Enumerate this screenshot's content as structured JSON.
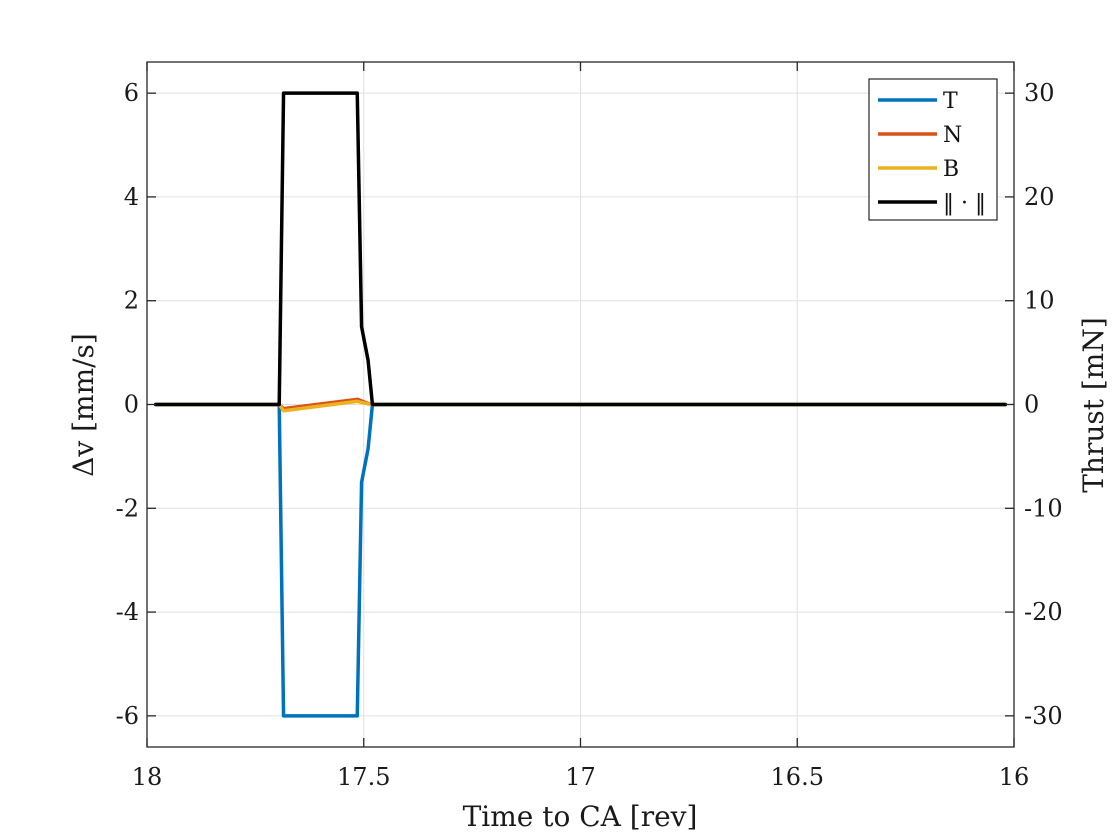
{
  "chart_data": {
    "type": "line",
    "xlabel": "Time to CA [rev]",
    "ylabel_left": "Δv [mm/s]",
    "ylabel_right": "Thrust [mN]",
    "x_reversed": true,
    "xlim": [
      16,
      18
    ],
    "ylim_left": [
      -6.6,
      6.6
    ],
    "ylim_right": [
      -33,
      33
    ],
    "x_ticks": [
      18,
      17.5,
      17,
      16.5,
      16
    ],
    "x_tick_labels": [
      "18",
      "17.5",
      "17",
      "16.5",
      "16"
    ],
    "y_ticks_left": [
      6,
      4,
      2,
      0,
      -2,
      -4,
      -6
    ],
    "y_tick_labels_left": [
      "6",
      "4",
      "2",
      "0",
      "-2",
      "-4",
      "-6"
    ],
    "y_ticks_right": [
      30,
      20,
      10,
      0,
      -10,
      -20,
      -30
    ],
    "y_tick_labels_right": [
      "30",
      "20",
      "10",
      "0",
      "-10",
      "-20",
      "-30"
    ],
    "grid": true,
    "legend_position": "top-right",
    "series": [
      {
        "name": "T",
        "color": "#0072BD",
        "x": [
          17.98,
          17.695,
          17.685,
          17.515,
          17.505,
          17.49,
          17.48,
          16.02
        ],
        "y": [
          0,
          0,
          -6,
          -6,
          -1.5,
          -0.85,
          0,
          0
        ]
      },
      {
        "name": "N",
        "color": "#D95319",
        "x": [
          17.98,
          17.695,
          17.685,
          17.515,
          17.505,
          17.49,
          17.48,
          16.02
        ],
        "y": [
          0,
          0,
          -0.08,
          0.1,
          0.07,
          0.02,
          0,
          0
        ]
      },
      {
        "name": "B",
        "color": "#EDB120",
        "x": [
          17.98,
          17.695,
          17.685,
          17.515,
          17.505,
          17.49,
          17.48,
          16.02
        ],
        "y": [
          0,
          0,
          -0.12,
          0.06,
          0.04,
          0.01,
          0,
          0
        ]
      },
      {
        "name": "‖ · ‖",
        "color": "#000000",
        "x": [
          17.98,
          17.695,
          17.685,
          17.515,
          17.505,
          17.49,
          17.48,
          16.02
        ],
        "y": [
          0,
          0,
          6,
          6,
          1.5,
          0.85,
          0,
          0
        ]
      }
    ]
  }
}
